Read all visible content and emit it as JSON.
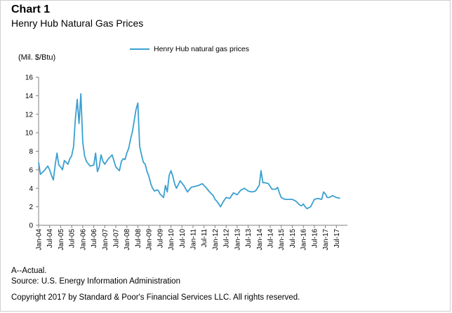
{
  "header": {
    "chart_label": "Chart 1",
    "chart_title": "Henry Hub Natural Gas Prices"
  },
  "footer": {
    "note": "A--Actual.",
    "source": "Source: U.S. Energy Information Administration",
    "copyright": "Copyright 2017 by Standard & Poor's Financial Services LLC. All rights reserved."
  },
  "colors": {
    "series": "#3aa0d0",
    "axis": "#808080"
  },
  "chart_data": {
    "type": "line",
    "ylabel": "(Mil. $/Btu)",
    "ylim": [
      0,
      16
    ],
    "yticks": [
      0,
      2,
      4,
      6,
      8,
      10,
      12,
      14,
      16
    ],
    "xticks": [
      "Jan-04",
      "Jul-04",
      "Jan-05",
      "Jul-05",
      "Jan-06",
      "Jul-06",
      "Jan-07",
      "Jul-07",
      "Jan-08",
      "Jul-08",
      "Jan-09",
      "Jul-09",
      "Jan-10",
      "Jul-10",
      "Jan-11",
      "Jul-11",
      "Jan-12",
      "Jul-12",
      "Jan-13",
      "Jul-13",
      "Jan-14",
      "Jul-14",
      "Jan-15",
      "Jul-15",
      "Jan-16",
      "Jul-16",
      "Jan-17",
      "Jul-17"
    ],
    "grid": false,
    "legend_position": "top",
    "series": [
      {
        "name": "Henry Hub natural gas prices",
        "x": [
          "2004-01",
          "2004-02",
          "2004-04",
          "2004-06",
          "2004-07",
          "2004-08",
          "2004-09",
          "2004-10",
          "2004-11",
          "2004-12",
          "2005-01",
          "2005-02",
          "2005-03",
          "2005-05",
          "2005-06",
          "2005-07",
          "2005-08",
          "2005-09",
          "2005-10",
          "2005-11",
          "2005-12",
          "2006-01",
          "2006-02",
          "2006-03",
          "2006-05",
          "2006-07",
          "2006-08",
          "2006-09",
          "2006-10",
          "2006-11",
          "2006-12",
          "2007-01",
          "2007-03",
          "2007-05",
          "2007-07",
          "2007-09",
          "2007-10",
          "2007-11",
          "2007-12",
          "2008-01",
          "2008-02",
          "2008-03",
          "2008-04",
          "2008-05",
          "2008-06",
          "2008-07",
          "2008-08",
          "2008-09",
          "2008-10",
          "2008-11",
          "2008-12",
          "2009-01",
          "2009-02",
          "2009-03",
          "2009-04",
          "2009-05",
          "2009-06",
          "2009-07",
          "2009-08",
          "2009-09",
          "2009-10",
          "2009-11",
          "2009-12",
          "2010-01",
          "2010-02",
          "2010-03",
          "2010-04",
          "2010-06",
          "2010-08",
          "2010-10",
          "2010-12",
          "2011-02",
          "2011-04",
          "2011-06",
          "2011-08",
          "2011-10",
          "2011-12",
          "2012-01",
          "2012-02",
          "2012-03",
          "2012-04",
          "2012-05",
          "2012-07",
          "2012-09",
          "2012-11",
          "2013-01",
          "2013-03",
          "2013-05",
          "2013-07",
          "2013-09",
          "2013-11",
          "2014-01",
          "2014-02",
          "2014-03",
          "2014-04",
          "2014-06",
          "2014-08",
          "2014-10",
          "2014-11",
          "2014-12",
          "2015-01",
          "2015-03",
          "2015-05",
          "2015-07",
          "2015-09",
          "2015-11",
          "2015-12",
          "2016-01",
          "2016-02",
          "2016-03",
          "2016-05",
          "2016-07",
          "2016-09",
          "2016-11",
          "2016-12",
          "2017-01",
          "2017-02",
          "2017-03",
          "2017-05",
          "2017-07",
          "2017-09"
        ],
        "values": [
          6.8,
          5.5,
          5.9,
          6.4,
          6.0,
          5.4,
          4.9,
          6.5,
          7.8,
          6.5,
          6.3,
          6.0,
          7.0,
          6.6,
          7.2,
          7.5,
          8.5,
          11.5,
          13.6,
          11.0,
          14.2,
          9.0,
          7.5,
          6.9,
          6.4,
          6.5,
          7.8,
          5.8,
          6.3,
          7.6,
          6.9,
          6.6,
          7.2,
          7.6,
          6.3,
          5.9,
          6.9,
          7.2,
          7.1,
          7.8,
          8.3,
          9.3,
          10.1,
          11.3,
          12.5,
          13.2,
          8.5,
          7.6,
          6.8,
          6.6,
          5.8,
          5.3,
          4.5,
          4.0,
          3.7,
          3.8,
          3.8,
          3.4,
          3.2,
          3.0,
          4.3,
          3.6,
          5.4,
          5.9,
          5.3,
          4.5,
          4.0,
          4.8,
          4.3,
          3.6,
          4.1,
          4.2,
          4.3,
          4.5,
          4.1,
          3.6,
          3.2,
          2.8,
          2.6,
          2.3,
          2.0,
          2.4,
          3.0,
          2.9,
          3.5,
          3.3,
          3.8,
          4.0,
          3.7,
          3.6,
          3.7,
          4.3,
          5.9,
          4.6,
          4.6,
          4.5,
          3.9,
          3.9,
          4.1,
          3.5,
          3.0,
          2.8,
          2.8,
          2.8,
          2.6,
          2.2,
          2.1,
          2.3,
          2.0,
          1.8,
          2.0,
          2.8,
          2.9,
          2.8,
          3.6,
          3.4,
          3.0,
          3.0,
          3.2,
          3.0,
          2.9
        ]
      }
    ]
  }
}
